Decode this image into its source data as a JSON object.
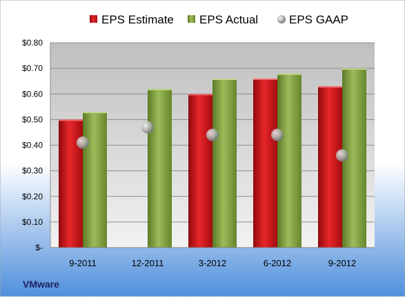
{
  "chart_data": {
    "type": "bar",
    "categories": [
      "9-2011",
      "12-2011",
      "3-2012",
      "6-2012",
      "9-2012"
    ],
    "series": [
      {
        "name": "EPS Estimate",
        "kind": "bar",
        "values": [
          0.5,
          null,
          0.6,
          0.66,
          0.63
        ],
        "color": "#d0161a"
      },
      {
        "name": "EPS Actual",
        "kind": "bar",
        "values": [
          0.53,
          0.62,
          0.66,
          0.68,
          0.7
        ],
        "color": "#7f9f3f"
      },
      {
        "name": "EPS GAAP",
        "kind": "marker",
        "values": [
          0.41,
          0.47,
          0.44,
          0.44,
          0.36
        ],
        "color": "#a9a9a9"
      }
    ],
    "ylim": [
      0,
      0.8
    ],
    "yticks": [
      0,
      0.1,
      0.2,
      0.3,
      0.4,
      0.5,
      0.6,
      0.7,
      0.8
    ],
    "ytick_labels": [
      "$-",
      "$0.10",
      "$0.20",
      "$0.30",
      "$0.40",
      "$0.50",
      "$0.60",
      "$0.70",
      "$0.80"
    ],
    "grid": true,
    "legend_position": "top"
  },
  "company_label": "VMware",
  "colors": {
    "background_top": "#ffffff",
    "background_bottom": "#4f8fdc",
    "plot_top": "#bfbfbf",
    "plot_bottom": "#f2f2f2"
  }
}
